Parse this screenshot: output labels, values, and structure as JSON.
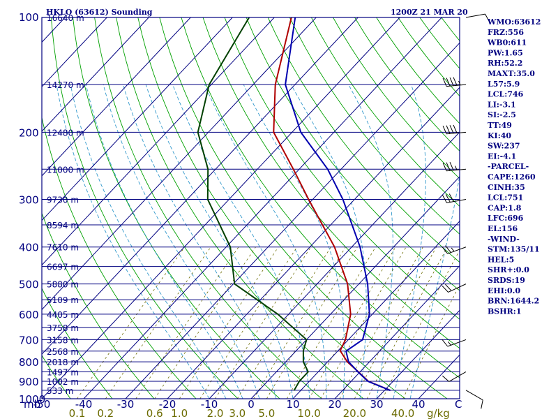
{
  "header": {
    "station": "HKLO (63612) Sounding",
    "time": "1200Z 21 MAR 20"
  },
  "indices": [
    "WMO:63612",
    "FRZ:556",
    "WB0:611",
    "PW:1.65",
    "RH:52.2",
    "MAXT:35.0",
    "L57:5.9",
    "LCL:746",
    "LI:-3.1",
    "SI:-2.5",
    "TT:49",
    "KI:40",
    "SW:237",
    "EI:-4.1",
    "-PARCEL-",
    "CAPE:1260",
    "CINH:35",
    "LCL:751",
    "CAP:1.8",
    "LFC:696",
    "EL:156",
    "-WIND-",
    "STM:135/11",
    "HEL:5",
    "SHR+:0.0",
    "SRDS:19",
    "EHI:0.0",
    "BRN:1644.2",
    "BSHR:1"
  ],
  "colors": {
    "frame": "#000080",
    "isobar": "#000080",
    "isotherm": "#000080",
    "dry_adiabat": "#00a000",
    "moist_adiabat": "#3399cc",
    "mixing_ratio": "#6b6b00",
    "temperature": "#b00000",
    "dewpoint": "#004000",
    "parcel": "#0000b0",
    "wind_barb": "#000000"
  },
  "chart_data": {
    "type": "skew-t",
    "y_axis": {
      "unit": "mb",
      "scale": "log",
      "range": [
        1000,
        100
      ],
      "ticks": [
        100,
        200,
        300,
        400,
        500,
        600,
        700,
        800,
        900,
        1000
      ]
    },
    "x_axis": {
      "unit": "C",
      "range": [
        -50,
        50
      ],
      "ticks": [
        -50,
        -40,
        -30,
        -20,
        -10,
        0,
        10,
        20,
        30,
        40
      ],
      "tick_labels": [
        "-50",
        "-40",
        "-30",
        "-20",
        "-10",
        "0",
        "10",
        "20",
        "30",
        "40"
      ]
    },
    "mixing_ratio_axis": {
      "unit": "g/kg",
      "values": [
        0.1,
        0.2,
        0.6,
        1.0,
        2.0,
        3.0,
        5.0,
        10.0,
        20.0,
        40.0
      ],
      "labels": [
        "0.1",
        "0.2",
        "0.6",
        "1.0",
        "2.0",
        "3.0",
        "5.0",
        "10.0",
        "20.0",
        "40.0"
      ]
    },
    "levels": [
      {
        "p": 100,
        "z": "16640 m"
      },
      {
        "p": 150,
        "z": "14270 m"
      },
      {
        "p": 200,
        "z": "12480 m"
      },
      {
        "p": 250,
        "z": "11000 m"
      },
      {
        "p": 300,
        "z": "9730 m"
      },
      {
        "p": 350,
        "z": "8594 m"
      },
      {
        "p": 400,
        "z": "7610 m"
      },
      {
        "p": 450,
        "z": "6697 m"
      },
      {
        "p": 500,
        "z": "5880 m"
      },
      {
        "p": 550,
        "z": "5109 m"
      },
      {
        "p": 600,
        "z": "4405 m"
      },
      {
        "p": 650,
        "z": "3758 m"
      },
      {
        "p": 700,
        "z": "3158 m"
      },
      {
        "p": 750,
        "z": "2568 m"
      },
      {
        "p": 800,
        "z": "2018 m"
      },
      {
        "p": 850,
        "z": "1497 m"
      },
      {
        "p": 900,
        "z": "1002 m"
      },
      {
        "p": 950,
        "z": "533 m"
      }
    ],
    "series": [
      {
        "key": "temperature",
        "points": [
          [
            951,
            31.4
          ],
          [
            900,
            24.1
          ],
          [
            850,
            19.6
          ],
          [
            800,
            14.7
          ],
          [
            748,
            10.5
          ],
          [
            700,
            9.3
          ],
          [
            600,
            4.8
          ],
          [
            500,
            -2.7
          ],
          [
            400,
            -14.1
          ],
          [
            300,
            -31.0
          ],
          [
            250,
            -41.4
          ],
          [
            200,
            -54.4
          ],
          [
            150,
            -64.7
          ],
          [
            100,
            -75.9
          ]
        ]
      },
      {
        "key": "dewpoint",
        "points": [
          [
            951,
            8.4
          ],
          [
            900,
            7.6
          ],
          [
            850,
            7.6
          ],
          [
            800,
            4.2
          ],
          [
            748,
            1.7
          ],
          [
            700,
            0.0
          ],
          [
            600,
            -12.6
          ],
          [
            500,
            -29.7
          ],
          [
            400,
            -39.0
          ],
          [
            300,
            -55.1
          ],
          [
            250,
            -61.8
          ],
          [
            200,
            -72.5
          ],
          [
            150,
            -80.5
          ],
          [
            100,
            -86.0
          ]
        ]
      },
      {
        "key": "parcel",
        "points": [
          [
            951,
            31.4
          ],
          [
            900,
            24.0
          ],
          [
            850,
            19.5
          ],
          [
            800,
            15.0
          ],
          [
            750,
            12.0
          ],
          [
            700,
            13.4
          ],
          [
            600,
            9.3
          ],
          [
            500,
            2.1
          ],
          [
            400,
            -8.0
          ],
          [
            300,
            -22.8
          ],
          [
            250,
            -33.2
          ],
          [
            200,
            -47.9
          ],
          [
            150,
            -62.3
          ],
          [
            100,
            -75.0
          ]
        ]
      }
    ],
    "wind_barbs": [
      {
        "p": 100,
        "dir": 80,
        "spd": 10
      },
      {
        "p": 150,
        "dir": 265,
        "spd": 45
      },
      {
        "p": 200,
        "dir": 265,
        "spd": 40
      },
      {
        "p": 250,
        "dir": 265,
        "spd": 35
      },
      {
        "p": 300,
        "dir": 260,
        "spd": 30
      },
      {
        "p": 400,
        "dir": 250,
        "spd": 25
      },
      {
        "p": 500,
        "dir": 245,
        "spd": 20
      },
      {
        "p": 700,
        "dir": 250,
        "spd": 15
      },
      {
        "p": 850,
        "dir": 240,
        "spd": 10
      },
      {
        "p": 950,
        "dir": 120,
        "spd": 10
      }
    ]
  }
}
